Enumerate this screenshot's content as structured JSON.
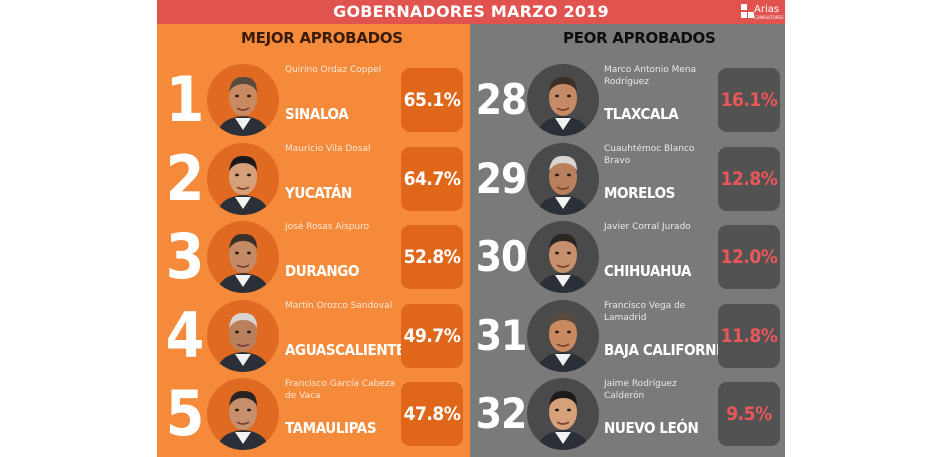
{
  "title": "GOBERNADORES MARZO 2019",
  "logo": {
    "text": "Arias",
    "subtext": "CONSULTORES"
  },
  "colors": {
    "topbar": "#e0534f",
    "left_panel": "#f48a3a",
    "right_panel": "#7a7a7a",
    "left_badge": "#e0661a",
    "right_badge": "#525252",
    "right_pct_text": "#e9575a"
  },
  "best": {
    "heading": "MEJOR APROBADOS",
    "items": [
      {
        "rank": "1",
        "name": "Quirino Ordaz Coppel",
        "state": "SINALOA",
        "pct": "65.1%"
      },
      {
        "rank": "2",
        "name": "Mauricio Vila Dosal",
        "state": "YUCATÁN",
        "pct": "64.7%"
      },
      {
        "rank": "3",
        "name": "José Rosas Aispuro",
        "state": "DURANGO",
        "pct": "52.8%"
      },
      {
        "rank": "4",
        "name": "Martín Orozco Sandoval",
        "state": "AGUASCALIENTES",
        "pct": "49.7%"
      },
      {
        "rank": "5",
        "name": "Francisco García Cabeza de Vaca",
        "state": "TAMAULIPAS",
        "pct": "47.8%"
      }
    ]
  },
  "worst": {
    "heading": "PEOR APROBADOS",
    "items": [
      {
        "rank": "28",
        "name": "Marco Antonio Mena Rodríguez",
        "state": "TLAXCALA",
        "pct": "16.1%"
      },
      {
        "rank": "29",
        "name": "Cuauhtémoc Blanco Bravo",
        "state": "MORELOS",
        "pct": "12.8%"
      },
      {
        "rank": "30",
        "name": "Javier Corral Jurado",
        "state": "CHIHUAHUA",
        "pct": "12.0%"
      },
      {
        "rank": "31",
        "name": "Francisco Vega de Lamadrid",
        "state": "BAJA CALIFORNIA",
        "pct": "11.8%"
      },
      {
        "rank": "32",
        "name": "Jaime Rodríguez Calderón",
        "state": "NUEVO LEÓN",
        "pct": "9.5%"
      }
    ]
  }
}
